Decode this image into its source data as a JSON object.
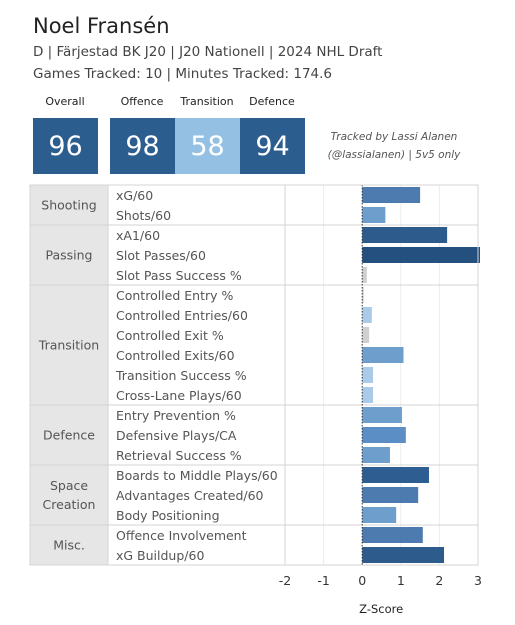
{
  "header": {
    "name": "Noel Fransén",
    "subtitle": "D | Färjestad BK J20 | J20 Nationell | 2024 NHL Draft",
    "games": "Games Tracked: 10 | Minutes Tracked: 174.6"
  },
  "scores": [
    {
      "label": "Overall",
      "value": "96",
      "color": "#2b5d8f"
    },
    {
      "label": "Offence",
      "value": "98",
      "color": "#2b5d8f"
    },
    {
      "label": "Transition",
      "value": "58",
      "color": "#94c1e3"
    },
    {
      "label": "Defence",
      "value": "94",
      "color": "#2b5d8f"
    }
  ],
  "credit": {
    "line1": "Tracked by Lassi Alanen",
    "line2": "(@lassialanen) | 5v5 only"
  },
  "chart_data": {
    "type": "bar",
    "orientation": "horizontal",
    "xlabel": "Z-Score",
    "xlim": [
      -2,
      3
    ],
    "xticks": [
      -2,
      -1,
      0,
      1,
      2,
      3
    ],
    "groups": [
      {
        "name": "Shooting",
        "rows": [
          {
            "label": "xG/60",
            "value": 1.5,
            "color": "#4d7bb0"
          },
          {
            "label": "Shots/60",
            "value": 0.6,
            "color": "#6e9fcc"
          }
        ]
      },
      {
        "name": "Passing",
        "rows": [
          {
            "label": "xA1/60",
            "value": 2.2,
            "color": "#2c5b8c"
          },
          {
            "label": "Slot Passes/60",
            "value": 3.1,
            "color": "#24507f"
          },
          {
            "label": "Slot Pass Success %",
            "value": 0.12,
            "color": "#cfcfcf"
          }
        ]
      },
      {
        "name": "Transition",
        "rows": [
          {
            "label": "Controlled Entry %",
            "value": 0.02,
            "color": "#cfcfcf"
          },
          {
            "label": "Controlled Entries/60",
            "value": 0.25,
            "color": "#a9cbe8"
          },
          {
            "label": "Controlled Exit %",
            "value": 0.18,
            "color": "#cfcfcf"
          },
          {
            "label": "Controlled Exits/60",
            "value": 1.07,
            "color": "#6e9fcc"
          },
          {
            "label": "Transition Success %",
            "value": 0.28,
            "color": "#a9cbe8"
          },
          {
            "label": "Cross-Lane Plays/60",
            "value": 0.28,
            "color": "#a9cbe8"
          }
        ]
      },
      {
        "name": "Defence",
        "rows": [
          {
            "label": "Entry Prevention %",
            "value": 1.03,
            "color": "#6e9fcc"
          },
          {
            "label": "Defensive Plays/CA",
            "value": 1.13,
            "color": "#5b8ec4"
          },
          {
            "label": "Retrieval Success %",
            "value": 0.72,
            "color": "#6e9fcc"
          }
        ]
      },
      {
        "name": "Space\nCreation",
        "rows": [
          {
            "label": "Boards to Middle Plays/60",
            "value": 1.73,
            "color": "#2e5e91"
          },
          {
            "label": "Advantages Created/60",
            "value": 1.45,
            "color": "#4d7bb0"
          },
          {
            "label": "Body Positioning",
            "value": 0.88,
            "color": "#6e9fcc"
          }
        ]
      },
      {
        "name": "Misc.",
        "rows": [
          {
            "label": "Offence Involvement",
            "value": 1.57,
            "color": "#4d7bb0"
          },
          {
            "label": "xG Buildup/60",
            "value": 2.12,
            "color": "#2c5b8c"
          }
        ]
      }
    ]
  }
}
